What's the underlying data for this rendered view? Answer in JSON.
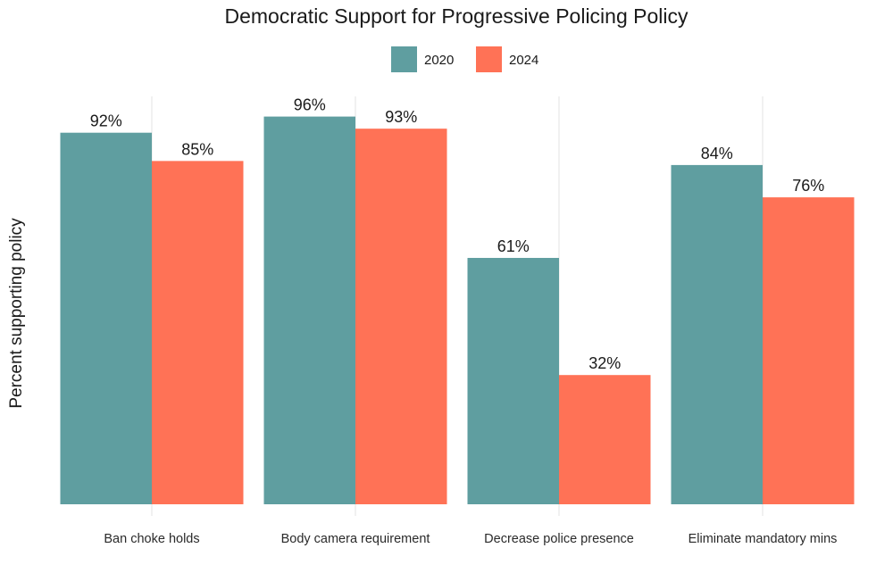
{
  "chart_data": {
    "type": "bar",
    "title": "Democratic Support for Progressive Policing Policy",
    "xlabel": "",
    "ylabel": "Percent supporting policy",
    "categories": [
      "Ban choke holds",
      "Body camera requirement",
      "Decrease police presence",
      "Eliminate mandatory mins"
    ],
    "series": [
      {
        "name": "2020",
        "color": "#5f9ea0",
        "values": [
          92,
          96,
          61,
          84
        ],
        "labels": [
          "92%",
          "96%",
          "61%",
          "84%"
        ]
      },
      {
        "name": "2024",
        "color": "#ff7256",
        "values": [
          85,
          93,
          32,
          76
        ],
        "labels": [
          "85%",
          "93%",
          "32%",
          "76%"
        ]
      }
    ],
    "ylim": [
      0,
      100
    ],
    "grid": "vertical lines at categories",
    "legend": "top-center"
  }
}
